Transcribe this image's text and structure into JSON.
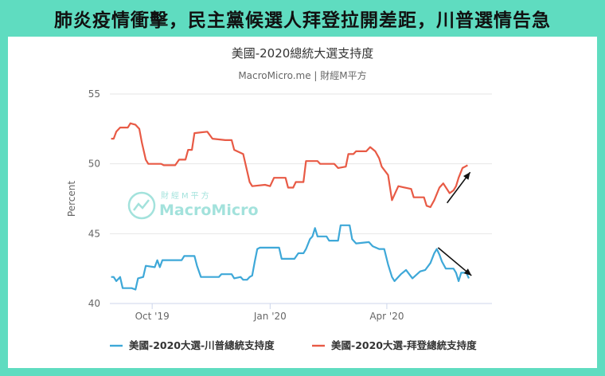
{
  "headline": "肺炎疫情衝擊，民主黨候選人拜登拉開差距，川普選情告急",
  "colors": {
    "background": "#5fdcc0",
    "trump": "#3ea8d8",
    "biden": "#e85a45",
    "logo": "#58ccc0"
  },
  "watermark": {
    "top": "財經M平方",
    "brand": "MacroMicro"
  },
  "chart_data": {
    "type": "line",
    "title": "美國-2020總統大選支持度",
    "subtitle": "MacroMicro.me | 財經M平方",
    "ylabel": "Percent",
    "xlabel": "",
    "ylim": [
      40,
      55
    ],
    "yticks": [
      40,
      45,
      50,
      55
    ],
    "xlim": [
      "2019-08-29",
      "2020-06-22"
    ],
    "xticks": [
      {
        "date": "2019-10-01",
        "label": "Oct '19"
      },
      {
        "date": "2020-01-01",
        "label": "Jan '20"
      },
      {
        "date": "2020-04-01",
        "label": "Apr '20"
      }
    ],
    "legend_position": "bottom",
    "series": [
      {
        "name": "美國-2020大選-川普總統支持度",
        "color": "#3ea8d8",
        "points": [
          [
            "2019-08-30",
            41.9
          ],
          [
            "2019-09-01",
            41.9
          ],
          [
            "2019-09-03",
            41.6
          ],
          [
            "2019-09-06",
            41.9
          ],
          [
            "2019-09-08",
            41.1
          ],
          [
            "2019-09-15",
            41.1
          ],
          [
            "2019-09-18",
            41.0
          ],
          [
            "2019-09-20",
            41.8
          ],
          [
            "2019-09-24",
            41.9
          ],
          [
            "2019-09-26",
            42.7
          ],
          [
            "2019-10-03",
            42.6
          ],
          [
            "2019-10-05",
            43.1
          ],
          [
            "2019-10-07",
            42.6
          ],
          [
            "2019-10-09",
            43.1
          ],
          [
            "2019-10-24",
            43.1
          ],
          [
            "2019-10-26",
            43.4
          ],
          [
            "2019-11-03",
            43.4
          ],
          [
            "2019-11-05",
            42.7
          ],
          [
            "2019-11-08",
            41.9
          ],
          [
            "2019-11-22",
            41.9
          ],
          [
            "2019-11-24",
            42.1
          ],
          [
            "2019-12-02",
            42.1
          ],
          [
            "2019-12-04",
            41.8
          ],
          [
            "2019-12-09",
            41.9
          ],
          [
            "2019-12-11",
            41.7
          ],
          [
            "2019-12-14",
            41.7
          ],
          [
            "2019-12-16",
            41.9
          ],
          [
            "2019-12-18",
            42.0
          ],
          [
            "2019-12-20",
            43.0
          ],
          [
            "2019-12-22",
            43.9
          ],
          [
            "2019-12-24",
            44.0
          ],
          [
            "2020-01-08",
            44.0
          ],
          [
            "2020-01-10",
            43.2
          ],
          [
            "2020-01-20",
            43.2
          ],
          [
            "2020-01-23",
            43.6
          ],
          [
            "2020-01-27",
            43.6
          ],
          [
            "2020-01-29",
            43.9
          ],
          [
            "2020-02-01",
            44.6
          ],
          [
            "2020-02-03",
            44.8
          ],
          [
            "2020-02-05",
            45.4
          ],
          [
            "2020-02-07",
            44.8
          ],
          [
            "2020-02-14",
            44.8
          ],
          [
            "2020-02-16",
            44.5
          ],
          [
            "2020-02-23",
            44.5
          ],
          [
            "2020-02-25",
            45.6
          ],
          [
            "2020-03-03",
            45.6
          ],
          [
            "2020-03-05",
            44.6
          ],
          [
            "2020-03-08",
            44.3
          ],
          [
            "2020-03-18",
            44.4
          ],
          [
            "2020-03-21",
            44.1
          ],
          [
            "2020-03-26",
            43.9
          ],
          [
            "2020-03-30",
            43.9
          ],
          [
            "2020-04-02",
            42.8
          ],
          [
            "2020-04-05",
            41.9
          ],
          [
            "2020-04-07",
            41.6
          ],
          [
            "2020-04-12",
            42.1
          ],
          [
            "2020-04-16",
            42.4
          ],
          [
            "2020-04-21",
            41.8
          ],
          [
            "2020-04-27",
            42.3
          ],
          [
            "2020-05-01",
            42.4
          ],
          [
            "2020-05-05",
            42.9
          ],
          [
            "2020-05-08",
            43.6
          ],
          [
            "2020-05-10",
            43.9
          ],
          [
            "2020-05-12",
            43.5
          ],
          [
            "2020-05-14",
            43.0
          ],
          [
            "2020-05-17",
            42.5
          ],
          [
            "2020-05-23",
            42.5
          ],
          [
            "2020-05-25",
            42.2
          ],
          [
            "2020-05-27",
            41.6
          ],
          [
            "2020-05-29",
            42.2
          ],
          [
            "2020-06-02",
            42.2
          ],
          [
            "2020-06-04",
            41.8
          ]
        ]
      },
      {
        "name": "美國-2020大選-拜登總統支持度",
        "color": "#e85a45",
        "points": [
          [
            "2019-08-30",
            51.8
          ],
          [
            "2019-09-01",
            51.8
          ],
          [
            "2019-09-03",
            52.3
          ],
          [
            "2019-09-06",
            52.6
          ],
          [
            "2019-09-12",
            52.6
          ],
          [
            "2019-09-14",
            52.9
          ],
          [
            "2019-09-18",
            52.8
          ],
          [
            "2019-09-21",
            52.5
          ],
          [
            "2019-09-23",
            51.5
          ],
          [
            "2019-09-26",
            50.3
          ],
          [
            "2019-09-28",
            50.0
          ],
          [
            "2019-10-08",
            50.0
          ],
          [
            "2019-10-10",
            49.9
          ],
          [
            "2019-10-19",
            49.9
          ],
          [
            "2019-10-22",
            50.3
          ],
          [
            "2019-10-27",
            50.3
          ],
          [
            "2019-10-29",
            51.0
          ],
          [
            "2019-11-01",
            51.0
          ],
          [
            "2019-11-03",
            52.2
          ],
          [
            "2019-11-13",
            52.3
          ],
          [
            "2019-11-17",
            51.8
          ],
          [
            "2019-11-27",
            51.7
          ],
          [
            "2019-12-02",
            51.7
          ],
          [
            "2019-12-04",
            51.0
          ],
          [
            "2019-12-11",
            50.7
          ],
          [
            "2019-12-16",
            48.7
          ],
          [
            "2019-12-18",
            48.4
          ],
          [
            "2019-12-28",
            48.5
          ],
          [
            "2020-01-01",
            48.4
          ],
          [
            "2020-01-04",
            49.0
          ],
          [
            "2020-01-13",
            49.0
          ],
          [
            "2020-01-15",
            48.3
          ],
          [
            "2020-01-19",
            48.3
          ],
          [
            "2020-01-21",
            48.7
          ],
          [
            "2020-01-27",
            48.7
          ],
          [
            "2020-01-29",
            50.2
          ],
          [
            "2020-02-07",
            50.2
          ],
          [
            "2020-02-09",
            50.0
          ],
          [
            "2020-02-20",
            50.0
          ],
          [
            "2020-02-23",
            49.7
          ],
          [
            "2020-02-29",
            49.8
          ],
          [
            "2020-03-02",
            50.7
          ],
          [
            "2020-03-06",
            50.7
          ],
          [
            "2020-03-08",
            50.9
          ],
          [
            "2020-03-16",
            50.9
          ],
          [
            "2020-03-19",
            51.2
          ],
          [
            "2020-03-23",
            50.9
          ],
          [
            "2020-03-26",
            50.4
          ],
          [
            "2020-03-28",
            49.8
          ],
          [
            "2020-04-02",
            49.2
          ],
          [
            "2020-04-05",
            47.4
          ],
          [
            "2020-04-08",
            48.0
          ],
          [
            "2020-04-10",
            48.4
          ],
          [
            "2020-04-20",
            48.2
          ],
          [
            "2020-04-22",
            47.6
          ],
          [
            "2020-04-30",
            47.6
          ],
          [
            "2020-05-02",
            47.0
          ],
          [
            "2020-05-05",
            46.9
          ],
          [
            "2020-05-08",
            47.4
          ],
          [
            "2020-05-12",
            48.3
          ],
          [
            "2020-05-15",
            48.6
          ],
          [
            "2020-05-20",
            47.9
          ],
          [
            "2020-05-23",
            48.1
          ],
          [
            "2020-05-25",
            48.4
          ],
          [
            "2020-05-27",
            49.0
          ],
          [
            "2020-05-30",
            49.7
          ],
          [
            "2020-06-01",
            49.8
          ],
          [
            "2020-06-03",
            49.9
          ]
        ]
      }
    ],
    "annotations": [
      {
        "type": "arrow",
        "color": "#111111",
        "from": [
          "2020-05-18",
          47.2
        ],
        "to": [
          "2020-06-05",
          49.4
        ]
      },
      {
        "type": "arrow",
        "color": "#111111",
        "from": [
          "2020-05-11",
          44.0
        ],
        "to": [
          "2020-06-06",
          42.0
        ]
      }
    ]
  }
}
